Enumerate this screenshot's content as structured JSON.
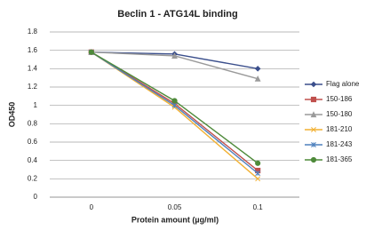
{
  "chart_data": {
    "type": "line",
    "title": "Beclin 1 - ATG14L binding",
    "x_label": "Protein amount (µg/ml)",
    "y_label": "OD450",
    "categories": [
      "0",
      "0.05",
      "0.1"
    ],
    "ylim": [
      0,
      1.8
    ],
    "yticks": [
      0,
      0.2,
      0.4,
      0.6,
      0.8,
      1,
      1.2,
      1.4,
      1.6,
      1.8
    ],
    "grid": true,
    "legend": "right",
    "series": [
      {
        "name": "Flag alone",
        "color": "#3b4f8c",
        "marker": "diamond",
        "values": [
          1.58,
          1.56,
          1.4
        ]
      },
      {
        "name": "150-186",
        "color": "#c0504d",
        "marker": "square",
        "values": [
          1.58,
          1.02,
          0.29
        ]
      },
      {
        "name": "150-180",
        "color": "#9a9a9a",
        "marker": "triangle",
        "values": [
          1.58,
          1.54,
          1.29
        ]
      },
      {
        "name": "181-210",
        "color": "#f2b134",
        "marker": "x",
        "values": [
          1.58,
          0.98,
          0.2
        ]
      },
      {
        "name": "181-243",
        "color": "#4f81bd",
        "marker": "star",
        "values": [
          1.58,
          1.0,
          0.26
        ]
      },
      {
        "name": "181-365",
        "color": "#4e8a3a",
        "marker": "circle",
        "values": [
          1.58,
          1.05,
          0.37
        ]
      }
    ]
  }
}
